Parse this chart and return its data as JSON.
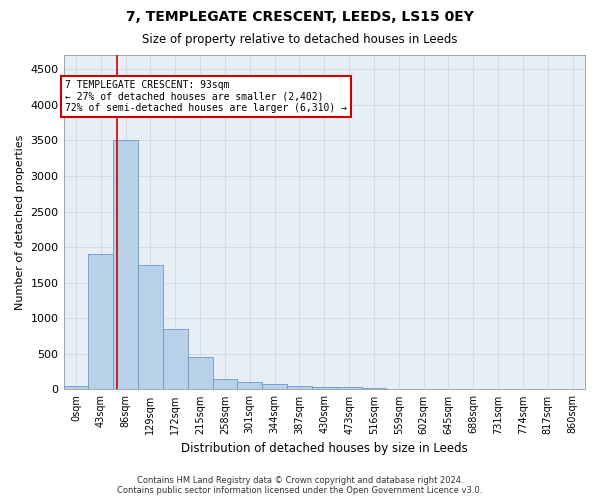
{
  "title1": "7, TEMPLEGATE CRESCENT, LEEDS, LS15 0EY",
  "title2": "Size of property relative to detached houses in Leeds",
  "xlabel": "Distribution of detached houses by size in Leeds",
  "ylabel": "Number of detached properties",
  "bin_labels": [
    "0sqm",
    "43sqm",
    "86sqm",
    "129sqm",
    "172sqm",
    "215sqm",
    "258sqm",
    "301sqm",
    "344sqm",
    "387sqm",
    "430sqm",
    "473sqm",
    "516sqm",
    "559sqm",
    "602sqm",
    "645sqm",
    "688sqm",
    "731sqm",
    "774sqm",
    "817sqm",
    "860sqm"
  ],
  "bar_values": [
    50,
    1900,
    3500,
    1750,
    850,
    450,
    150,
    100,
    70,
    50,
    40,
    35,
    20,
    10,
    8,
    6,
    5,
    4,
    3,
    2,
    1
  ],
  "bar_color": "#b8d0e8",
  "bar_edge_color": "#6699cc",
  "grid_color": "#d0dcea",
  "background_color": "#e8eef6",
  "red_line_x": 93,
  "bin_width": 43,
  "annotation_title": "7 TEMPLEGATE CRESCENT: 93sqm",
  "annotation_line1": "← 27% of detached houses are smaller (2,402)",
  "annotation_line2": "72% of semi-detached houses are larger (6,310) →",
  "annotation_box_color": "#cc0000",
  "ylim": [
    0,
    4700
  ],
  "yticks": [
    0,
    500,
    1000,
    1500,
    2000,
    2500,
    3000,
    3500,
    4000,
    4500
  ],
  "footer1": "Contains HM Land Registry data © Crown copyright and database right 2024.",
  "footer2": "Contains public sector information licensed under the Open Government Licence v3.0."
}
